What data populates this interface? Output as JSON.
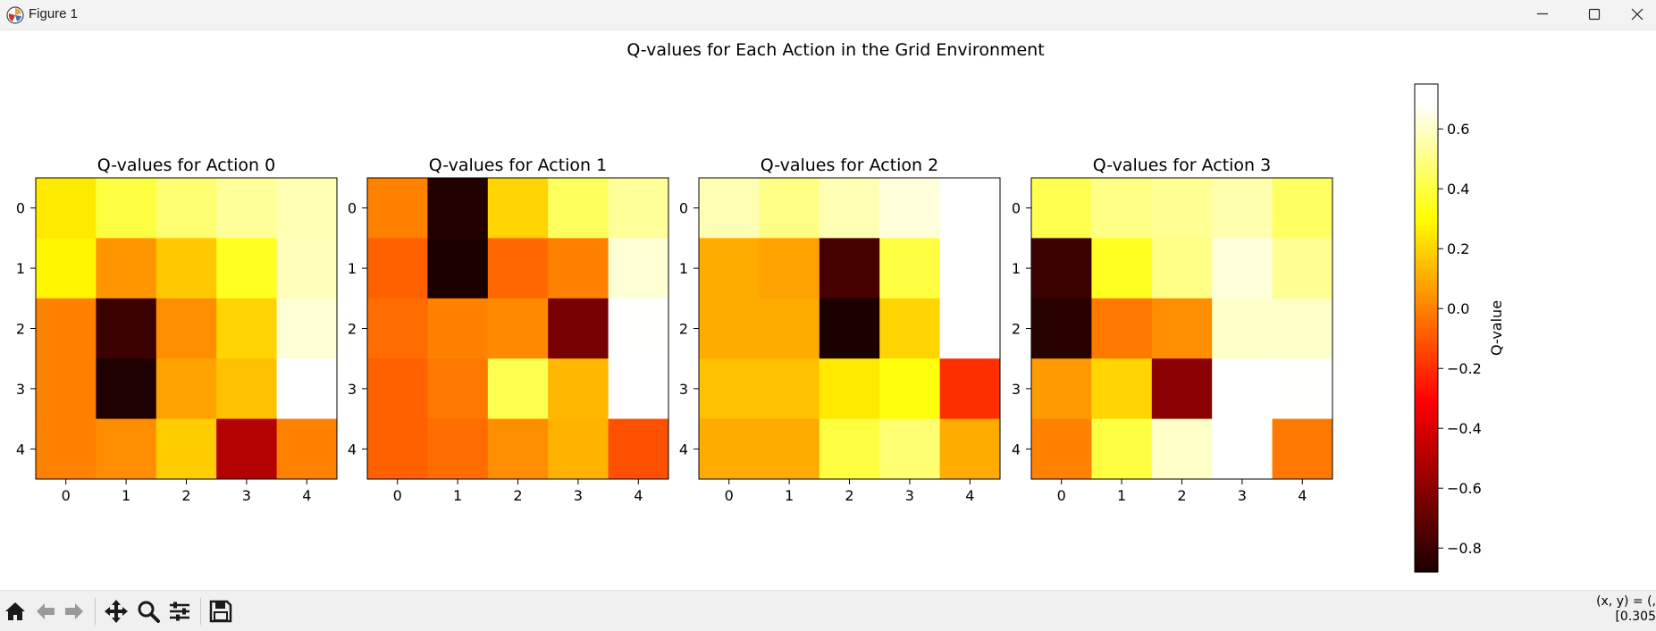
{
  "window": {
    "title": "Figure 1",
    "icons": {
      "app": "matplotlib-icon",
      "minimize": "minimize-icon",
      "maximize": "maximize-icon",
      "close": "close-icon"
    }
  },
  "toolbar": {
    "buttons": [
      {
        "name": "home-button",
        "icon": "home-icon"
      },
      {
        "name": "back-button",
        "icon": "arrow-left-icon"
      },
      {
        "name": "forward-button",
        "icon": "arrow-right-icon"
      },
      {
        "name": "pan-button",
        "icon": "move-icon"
      },
      {
        "name": "zoom-button",
        "icon": "magnifier-icon"
      },
      {
        "name": "configure-subplots-button",
        "icon": "sliders-icon"
      },
      {
        "name": "save-button",
        "icon": "floppy-disk-icon"
      }
    ],
    "coords_line1": "(x, y) = (,",
    "coords_line2": "[0.305"
  },
  "chart_data": {
    "type": "heatmap",
    "title": "Q-values for Each Action in the Grid Environment",
    "colormap": "hot",
    "vmin": -0.88,
    "vmax": 0.75,
    "colorbar": {
      "label": "Q-value",
      "ticks": [
        -0.8,
        -0.6,
        -0.4,
        -0.2,
        0.0,
        0.2,
        0.4,
        0.6
      ],
      "tick_labels": [
        "−0.8",
        "−0.6",
        "−0.4",
        "−0.2",
        "0.0",
        "0.2",
        "0.4",
        "0.6"
      ]
    },
    "subplots": [
      {
        "title": "Q-values for Action 0",
        "xticks": [
          "0",
          "1",
          "2",
          "3",
          "4"
        ],
        "yticks": [
          "0",
          "1",
          "2",
          "3",
          "4"
        ],
        "values": [
          [
            0.25,
            0.4,
            0.47,
            0.53,
            0.57
          ],
          [
            0.28,
            0.05,
            0.17,
            0.35,
            0.58
          ],
          [
            0.0,
            -0.8,
            0.03,
            0.2,
            0.62
          ],
          [
            0.0,
            -0.87,
            0.08,
            0.15,
            0.75
          ],
          [
            0.0,
            0.03,
            0.18,
            -0.5,
            0.0
          ]
        ]
      },
      {
        "title": "Q-values for Action 1",
        "xticks": [
          "0",
          "1",
          "2",
          "3",
          "4"
        ],
        "yticks": [
          "0",
          "1",
          "2",
          "3",
          "4"
        ],
        "values": [
          [
            0.0,
            -0.86,
            0.2,
            0.44,
            0.53
          ],
          [
            -0.08,
            -0.88,
            -0.06,
            0.0,
            0.62
          ],
          [
            -0.05,
            0.0,
            0.02,
            -0.65,
            0.68
          ],
          [
            -0.08,
            -0.02,
            0.42,
            0.13,
            0.75
          ],
          [
            -0.08,
            -0.05,
            0.03,
            0.12,
            -0.12
          ]
        ]
      },
      {
        "title": "Q-values for Action 2",
        "xticks": [
          "0",
          "1",
          "2",
          "3",
          "4"
        ],
        "yticks": [
          "0",
          "1",
          "2",
          "3",
          "4"
        ],
        "values": [
          [
            0.57,
            0.5,
            0.57,
            0.63,
            0.72
          ],
          [
            0.1,
            0.08,
            -0.77,
            0.4,
            0.72
          ],
          [
            0.1,
            0.1,
            -0.88,
            0.2,
            0.75
          ],
          [
            0.15,
            0.15,
            0.25,
            0.32,
            -0.2
          ],
          [
            0.1,
            0.1,
            0.4,
            0.47,
            0.1
          ]
        ]
      },
      {
        "title": "Q-values for Action 3",
        "xticks": [
          "0",
          "1",
          "2",
          "3",
          "4"
        ],
        "yticks": [
          "0",
          "1",
          "2",
          "3",
          "4"
        ],
        "values": [
          [
            0.42,
            0.5,
            0.52,
            0.56,
            0.45
          ],
          [
            -0.8,
            0.35,
            0.5,
            0.63,
            0.52
          ],
          [
            -0.85,
            -0.02,
            0.03,
            0.6,
            0.6
          ],
          [
            0.06,
            0.2,
            -0.6,
            0.7,
            0.68
          ],
          [
            0.0,
            0.4,
            0.6,
            0.75,
            -0.02
          ]
        ]
      }
    ]
  }
}
